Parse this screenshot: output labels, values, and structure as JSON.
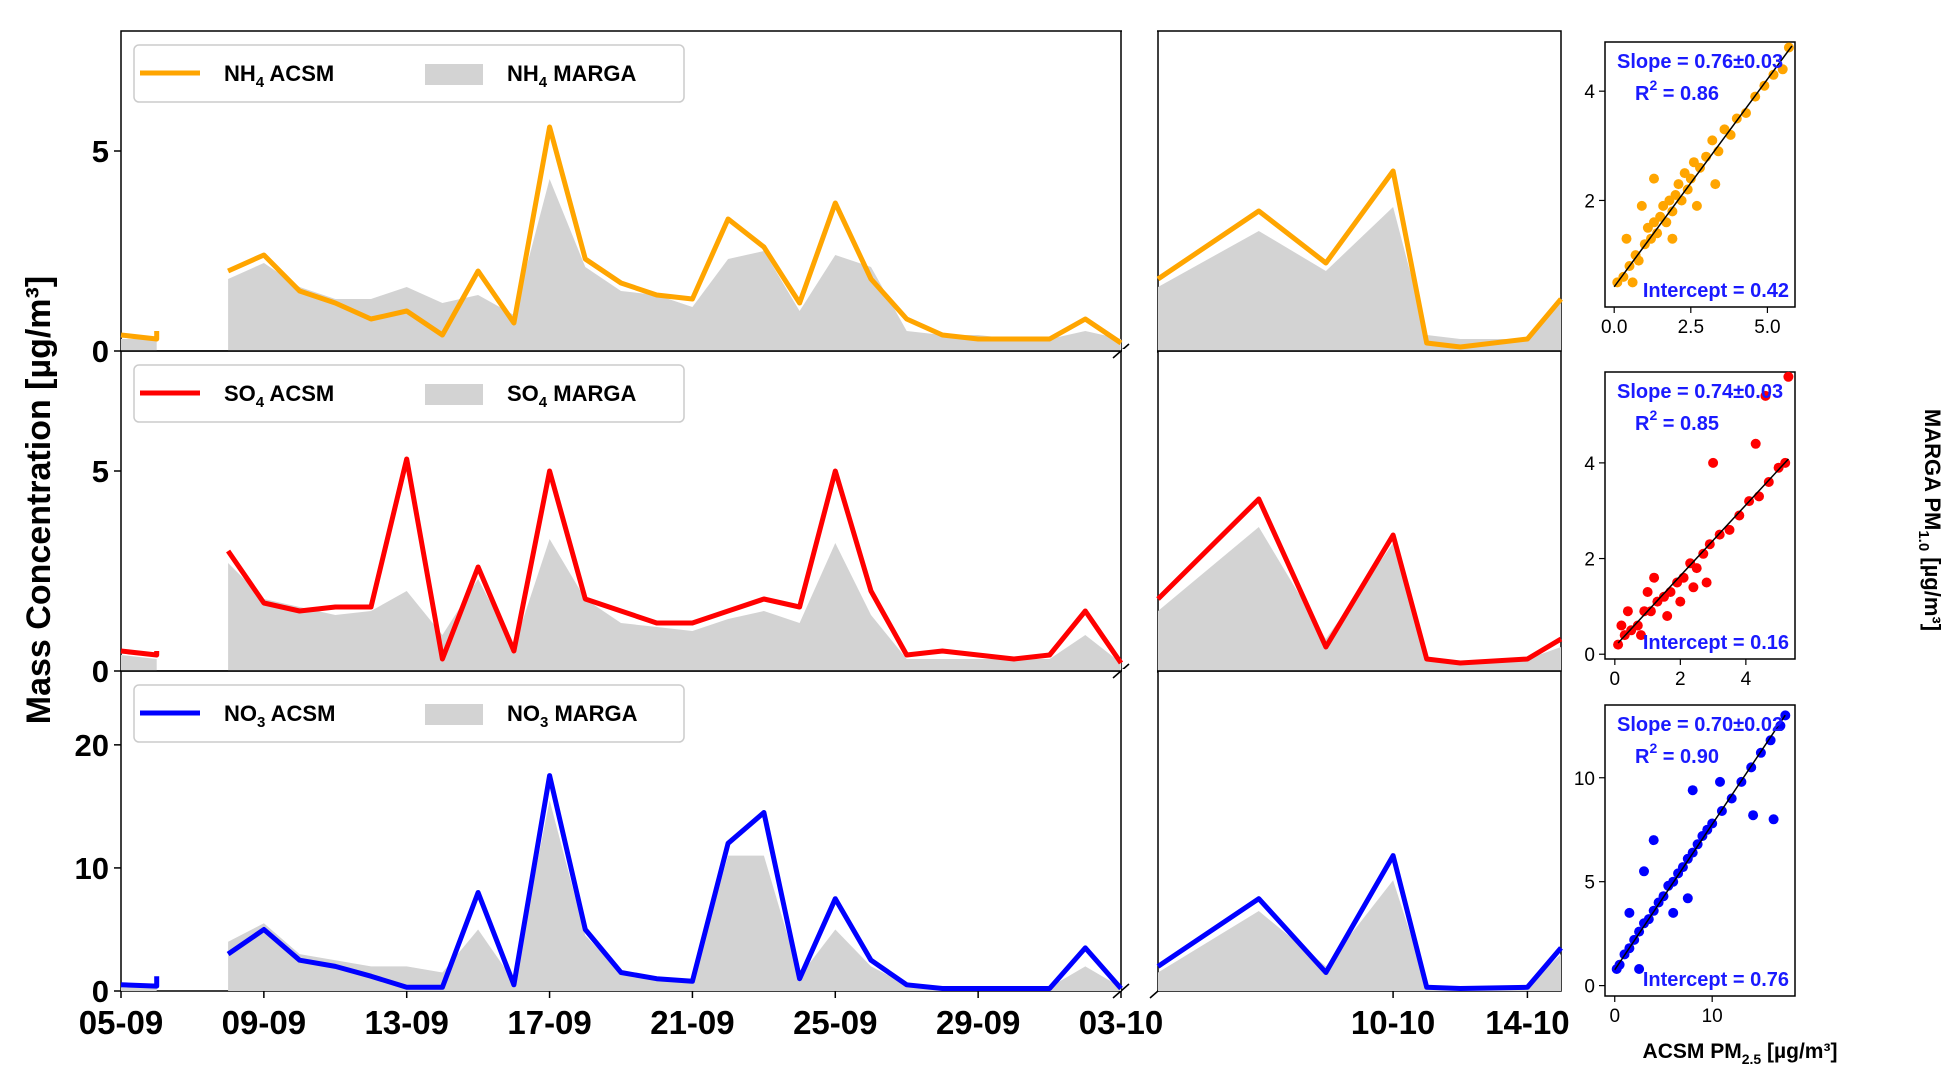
{
  "figure": {
    "ylabel": "Mass Concentration [µg/m³]",
    "right_ylabel": "MARGA PM",
    "right_ylabel_sub": "1.0",
    "right_ylabel_unit": " [µg/m³]",
    "scatter_xlabel": "ACSM PM",
    "scatter_xlabel_sub": "2.5",
    "scatter_xlabel_unit": " [µg/m³]"
  },
  "chart_data": [
    {
      "type": "line",
      "species": "NH4",
      "color": "#FFA500",
      "legend": {
        "line_name": "NH",
        "line_sub": "4",
        "line_suffix": " ACSM",
        "area_name": "NH",
        "area_sub": "4",
        "area_suffix": " MARGA"
      },
      "ylim": [
        0,
        8
      ],
      "yticks": [
        0,
        5
      ],
      "segment1": {
        "x": [
          "05-09",
          "06-09",
          "06-09",
          "07-09",
          "08-09",
          "09-09",
          "10-09",
          "11-09",
          "12-09",
          "13-09",
          "14-09",
          "15-09",
          "16-09",
          "17-09",
          "18-09",
          "19-09",
          "20-09",
          "21-09",
          "22-09",
          "23-09",
          "24-09",
          "25-09",
          "26-09",
          "27-09",
          "28-09",
          "29-09",
          "30-09",
          "01-10",
          "02-10",
          "03-10"
        ],
        "acsm": [
          0.4,
          0.3,
          0.5,
          null,
          2.0,
          2.4,
          1.5,
          1.2,
          0.8,
          1.0,
          0.4,
          2.0,
          0.7,
          5.6,
          2.3,
          1.7,
          1.4,
          1.3,
          3.3,
          2.6,
          1.2,
          3.7,
          1.8,
          0.8,
          0.4,
          0.3,
          0.3,
          0.3,
          0.8,
          0.2
        ],
        "marga": [
          0.3,
          0.3,
          0.9,
          null,
          1.8,
          2.2,
          1.6,
          1.3,
          1.3,
          1.6,
          1.2,
          1.4,
          0.9,
          4.3,
          2.1,
          1.5,
          1.4,
          1.1,
          2.3,
          2.5,
          1.0,
          2.4,
          2.1,
          0.5,
          0.4,
          0.4,
          0.3,
          0.3,
          0.5,
          0.3
        ]
      },
      "segment2": {
        "x": [
          "03-10",
          "06-10",
          "08-10",
          "10-10",
          "11-10",
          "12-10",
          "14-10",
          "15-10"
        ],
        "acsm": [
          1.8,
          3.5,
          2.2,
          4.5,
          0.2,
          0.1,
          0.3,
          1.3
        ],
        "marga": [
          1.6,
          3.0,
          2.0,
          3.6,
          0.4,
          0.3,
          0.3,
          1.2
        ]
      },
      "scatter": {
        "slope_label": "Slope = 0.76±0.03",
        "r2_label": "R",
        "r2_sup": "2",
        "r2_value": " = 0.86",
        "intercept_label": "Intercept = 0.42",
        "xlim": [
          -0.3,
          5.9
        ],
        "ylim": [
          0.05,
          4.9
        ],
        "xticks": [
          "0.0",
          "2.5",
          "5.0"
        ],
        "yticks": [
          "2",
          "4"
        ],
        "fit": {
          "slope": 0.76,
          "intercept": 0.42,
          "x0": 0,
          "x1": 5.8
        },
        "points": [
          [
            0.1,
            0.5
          ],
          [
            0.3,
            0.6
          ],
          [
            0.5,
            0.8
          ],
          [
            0.7,
            1.0
          ],
          [
            0.8,
            0.9
          ],
          [
            1.0,
            1.2
          ],
          [
            1.1,
            1.5
          ],
          [
            1.2,
            1.3
          ],
          [
            1.3,
            1.6
          ],
          [
            1.4,
            1.4
          ],
          [
            1.5,
            1.7
          ],
          [
            1.6,
            1.9
          ],
          [
            1.7,
            1.6
          ],
          [
            1.8,
            2.0
          ],
          [
            1.9,
            1.8
          ],
          [
            2.0,
            2.1
          ],
          [
            2.1,
            2.3
          ],
          [
            2.2,
            2.0
          ],
          [
            2.3,
            2.5
          ],
          [
            2.4,
            2.2
          ],
          [
            2.5,
            2.4
          ],
          [
            2.6,
            2.7
          ],
          [
            2.8,
            2.6
          ],
          [
            3.0,
            2.8
          ],
          [
            3.2,
            3.1
          ],
          [
            3.4,
            2.9
          ],
          [
            3.6,
            3.3
          ],
          [
            3.8,
            3.2
          ],
          [
            4.0,
            3.5
          ],
          [
            4.3,
            3.6
          ],
          [
            4.6,
            3.9
          ],
          [
            4.9,
            4.1
          ],
          [
            5.2,
            4.3
          ],
          [
            5.5,
            4.4
          ],
          [
            5.7,
            4.8
          ],
          [
            0.4,
            1.3
          ],
          [
            0.9,
            1.9
          ],
          [
            1.3,
            2.4
          ],
          [
            0.6,
            0.5
          ],
          [
            1.9,
            1.3
          ],
          [
            2.7,
            1.9
          ],
          [
            3.3,
            2.3
          ]
        ]
      }
    },
    {
      "type": "line",
      "species": "SO4",
      "color": "#FF0000",
      "legend": {
        "line_name": "SO",
        "line_sub": "4",
        "line_suffix": " ACSM",
        "area_name": "SO",
        "area_sub": "4",
        "area_suffix": " MARGA"
      },
      "ylim": [
        0,
        8
      ],
      "yticks": [
        0,
        5
      ],
      "segment1": {
        "x": [
          "05-09",
          "06-09",
          "06-09",
          "07-09",
          "08-09",
          "09-09",
          "10-09",
          "11-09",
          "12-09",
          "13-09",
          "14-09",
          "15-09",
          "16-09",
          "17-09",
          "18-09",
          "19-09",
          "20-09",
          "21-09",
          "22-09",
          "23-09",
          "24-09",
          "25-09",
          "26-09",
          "27-09",
          "28-09",
          "29-09",
          "30-09",
          "01-10",
          "02-10",
          "03-10"
        ],
        "acsm": [
          0.5,
          0.4,
          0.5,
          null,
          3.0,
          1.7,
          1.5,
          1.6,
          1.6,
          5.3,
          0.3,
          2.6,
          0.5,
          5.0,
          1.8,
          1.5,
          1.2,
          1.2,
          1.5,
          1.8,
          1.6,
          5.0,
          2.0,
          0.4,
          0.5,
          0.4,
          0.3,
          0.4,
          1.5,
          0.2
        ],
        "marga": [
          0.4,
          0.3,
          0.3,
          null,
          2.7,
          1.8,
          1.6,
          1.4,
          1.5,
          2.0,
          0.9,
          2.3,
          0.6,
          3.3,
          1.8,
          1.2,
          1.1,
          1.0,
          1.3,
          1.5,
          1.2,
          3.2,
          1.4,
          0.3,
          0.3,
          0.3,
          0.3,
          0.3,
          0.9,
          0.2
        ]
      },
      "segment2": {
        "x": [
          "03-10",
          "06-10",
          "08-10",
          "10-10",
          "11-10",
          "12-10",
          "14-10",
          "15-10"
        ],
        "acsm": [
          1.8,
          4.3,
          0.6,
          3.4,
          0.3,
          0.2,
          0.3,
          0.8
        ],
        "marga": [
          1.5,
          3.6,
          0.8,
          3.2,
          0.3,
          0.2,
          0.3,
          0.6
        ]
      },
      "scatter": {
        "slope_label": "Slope = 0.74±0.03",
        "r2_label": "R",
        "r2_sup": "2",
        "r2_value": " = 0.85",
        "intercept_label": "Intercept = 0.16",
        "xlim": [
          -0.3,
          5.5
        ],
        "ylim": [
          -0.1,
          5.9
        ],
        "xticks": [
          "0",
          "2",
          "4"
        ],
        "yticks": [
          "0",
          "2",
          "4"
        ],
        "fit": {
          "slope": 0.74,
          "intercept": 0.16,
          "x0": 0.1,
          "x1": 5.3
        },
        "points": [
          [
            0.1,
            0.2
          ],
          [
            0.3,
            0.4
          ],
          [
            0.5,
            0.5
          ],
          [
            0.7,
            0.6
          ],
          [
            0.9,
            0.9
          ],
          [
            1.1,
            0.9
          ],
          [
            1.3,
            1.1
          ],
          [
            1.5,
            1.2
          ],
          [
            1.7,
            1.3
          ],
          [
            1.9,
            1.5
          ],
          [
            2.1,
            1.6
          ],
          [
            2.3,
            1.9
          ],
          [
            2.5,
            1.8
          ],
          [
            2.7,
            2.1
          ],
          [
            2.9,
            2.3
          ],
          [
            3.2,
            2.5
          ],
          [
            3.5,
            2.6
          ],
          [
            3.8,
            2.9
          ],
          [
            4.1,
            3.2
          ],
          [
            4.4,
            3.3
          ],
          [
            4.7,
            3.6
          ],
          [
            5.0,
            3.9
          ],
          [
            5.2,
            4.0
          ],
          [
            3.0,
            4.0
          ],
          [
            4.3,
            4.4
          ],
          [
            4.6,
            5.4
          ],
          [
            5.3,
            5.8
          ],
          [
            0.4,
            0.9
          ],
          [
            0.8,
            0.4
          ],
          [
            1.2,
            1.6
          ],
          [
            1.6,
            0.8
          ],
          [
            2.0,
            1.1
          ],
          [
            2.4,
            1.4
          ],
          [
            0.2,
            0.6
          ],
          [
            1.0,
            1.3
          ],
          [
            2.8,
            1.5
          ]
        ]
      }
    },
    {
      "type": "line",
      "species": "NO3",
      "color": "#0000FF",
      "legend": {
        "line_name": "NO",
        "line_sub": "3",
        "line_suffix": " ACSM",
        "area_name": "NO",
        "area_sub": "3",
        "area_suffix": " MARGA"
      },
      "ylim": [
        0,
        26
      ],
      "yticks": [
        0,
        10,
        20
      ],
      "segment1": {
        "x": [
          "05-09",
          "06-09",
          "06-09",
          "07-09",
          "08-09",
          "09-09",
          "10-09",
          "11-09",
          "12-09",
          "13-09",
          "14-09",
          "15-09",
          "16-09",
          "17-09",
          "18-09",
          "19-09",
          "20-09",
          "21-09",
          "22-09",
          "23-09",
          "24-09",
          "25-09",
          "26-09",
          "27-09",
          "28-09",
          "29-09",
          "30-09",
          "01-10",
          "02-10",
          "03-10"
        ],
        "acsm": [
          0.5,
          0.4,
          1.2,
          null,
          3.0,
          5.0,
          2.5,
          2.0,
          1.2,
          0.3,
          0.3,
          8.0,
          0.5,
          17.5,
          5.0,
          1.5,
          1.0,
          0.8,
          12.0,
          14.5,
          1.0,
          7.5,
          2.5,
          0.5,
          0.2,
          0.2,
          0.2,
          0.2,
          3.5,
          0.2
        ],
        "marga": [
          0.3,
          0.3,
          0.8,
          null,
          4.0,
          5.5,
          3.0,
          2.5,
          2.0,
          2.0,
          1.5,
          5.0,
          0.8,
          15.5,
          4.5,
          1.5,
          1.0,
          1.0,
          11.0,
          11.0,
          1.2,
          5.0,
          2.0,
          0.5,
          0.4,
          0.4,
          0.3,
          0.3,
          2.0,
          0.3
        ]
      },
      "segment2": {
        "x": [
          "03-10",
          "06-10",
          "08-10",
          "10-10",
          "11-10",
          "12-10",
          "14-10",
          "15-10"
        ],
        "acsm": [
          2.0,
          7.5,
          1.5,
          11.0,
          0.3,
          0.2,
          0.3,
          3.5
        ],
        "marga": [
          1.5,
          6.5,
          2.0,
          9.0,
          0.5,
          0.3,
          0.4,
          3.0
        ]
      },
      "scatter": {
        "slope_label": "Slope = 0.70±0.02",
        "r2_label": "R",
        "r2_sup": "2",
        "r2_value": " = 0.90",
        "intercept_label": "Intercept = 0.76",
        "xlim": [
          -1.0,
          18.5
        ],
        "ylim": [
          -0.5,
          13.5
        ],
        "xticks": [
          "0",
          "10"
        ],
        "yticks": [
          "0",
          "5",
          "10"
        ],
        "fit": {
          "slope": 0.7,
          "intercept": 0.76,
          "x0": 0,
          "x1": 17.5
        },
        "points": [
          [
            0.2,
            0.8
          ],
          [
            0.5,
            1.0
          ],
          [
            1.0,
            1.5
          ],
          [
            1.5,
            1.8
          ],
          [
            2.0,
            2.2
          ],
          [
            2.5,
            2.6
          ],
          [
            3.0,
            3.0
          ],
          [
            3.5,
            3.2
          ],
          [
            4.0,
            3.6
          ],
          [
            4.5,
            4.0
          ],
          [
            5.0,
            4.3
          ],
          [
            5.5,
            4.8
          ],
          [
            6.0,
            5.0
          ],
          [
            6.5,
            5.4
          ],
          [
            7.0,
            5.7
          ],
          [
            7.5,
            6.1
          ],
          [
            8.0,
            6.4
          ],
          [
            8.5,
            6.8
          ],
          [
            9.0,
            7.2
          ],
          [
            9.5,
            7.5
          ],
          [
            10.0,
            7.8
          ],
          [
            11.0,
            8.4
          ],
          [
            12.0,
            9.0
          ],
          [
            13.0,
            9.8
          ],
          [
            14.0,
            10.5
          ],
          [
            15.0,
            11.2
          ],
          [
            16.0,
            11.8
          ],
          [
            17.0,
            12.5
          ],
          [
            17.5,
            13.0
          ],
          [
            4.0,
            7.0
          ],
          [
            8.0,
            9.4
          ],
          [
            10.8,
            9.8
          ],
          [
            14.2,
            8.2
          ],
          [
            16.3,
            8.0
          ],
          [
            1.5,
            3.5
          ],
          [
            3.0,
            5.5
          ],
          [
            6.0,
            3.5
          ],
          [
            7.5,
            4.2
          ],
          [
            2.5,
            0.8
          ]
        ]
      }
    }
  ],
  "x_axis": {
    "ticks_segment1": [
      "05-09",
      "09-09",
      "13-09",
      "17-09",
      "21-09",
      "25-09",
      "29-09",
      "03-10"
    ],
    "ticks_segment2": [
      "10-10",
      "14-10"
    ]
  }
}
